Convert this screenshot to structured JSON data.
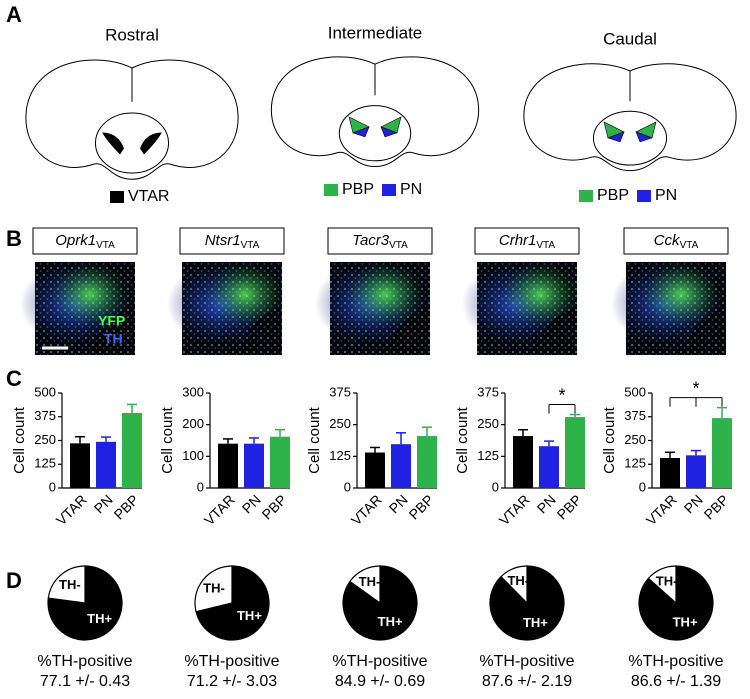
{
  "panel_labels": [
    "A",
    "B",
    "C",
    "D"
  ],
  "brain_sections": [
    {
      "title": "Rostral",
      "legend": [
        {
          "label": "VTAR",
          "color": "#000000"
        }
      ]
    },
    {
      "title": "Intermediate",
      "legend": [
        {
          "label": "PBP",
          "color": "#2db34a"
        },
        {
          "label": "PN",
          "color": "#1f22e0"
        }
      ]
    },
    {
      "title": "Caudal",
      "legend": [
        {
          "label": "PBP",
          "color": "#2db34a"
        },
        {
          "label": "PN",
          "color": "#1f22e0"
        }
      ]
    }
  ],
  "images": [
    {
      "gene": "Oprk1",
      "subscript": "VTA"
    },
    {
      "gene": "Ntsr1",
      "subscript": "VTA"
    },
    {
      "gene": "Tacr3",
      "subscript": "VTA"
    },
    {
      "gene": "Crhr1",
      "subscript": "VTA"
    },
    {
      "gene": "Cck",
      "subscript": "VTA"
    }
  ],
  "image_legend": {
    "yfp": "YFP",
    "th": "TH"
  },
  "chart_data": [
    {
      "type": "bar",
      "ylabel": "Cell count",
      "categories": [
        "VTAR",
        "PN",
        "PBP"
      ],
      "values": [
        235,
        243,
        395
      ],
      "errors": [
        35,
        25,
        45
      ],
      "colors": [
        "#000000",
        "#1f22e0",
        "#2db34a"
      ],
      "ylim": [
        0,
        500
      ],
      "yticks": [
        0,
        125,
        250,
        375,
        500
      ],
      "significance": []
    },
    {
      "type": "bar",
      "ylabel": "Cell count",
      "categories": [
        "VTAR",
        "PN",
        "PBP"
      ],
      "values": [
        140,
        140,
        162
      ],
      "errors": [
        15,
        18,
        22
      ],
      "colors": [
        "#000000",
        "#1f22e0",
        "#2db34a"
      ],
      "ylim": [
        0,
        300
      ],
      "yticks": [
        0,
        100,
        200,
        300
      ],
      "significance": []
    },
    {
      "type": "bar",
      "ylabel": "Cell count",
      "categories": [
        "VTAR",
        "PN",
        "PBP"
      ],
      "values": [
        140,
        173,
        205
      ],
      "errors": [
        20,
        45,
        35
      ],
      "colors": [
        "#000000",
        "#1f22e0",
        "#2db34a"
      ],
      "ylim": [
        0,
        375
      ],
      "yticks": [
        0,
        125,
        250,
        375
      ],
      "significance": []
    },
    {
      "type": "bar",
      "ylabel": "Cell count",
      "categories": [
        "VTAR",
        "PN",
        "PBP"
      ],
      "values": [
        205,
        165,
        280
      ],
      "errors": [
        25,
        20,
        10
      ],
      "colors": [
        "#000000",
        "#1f22e0",
        "#2db34a"
      ],
      "ylim": [
        0,
        375
      ],
      "yticks": [
        0,
        125,
        250,
        375
      ],
      "significance": [
        {
          "label": "*",
          "groups": [
            "PN",
            "PBP"
          ]
        }
      ]
    },
    {
      "type": "bar",
      "ylabel": "Cell count",
      "categories": [
        "VTAR",
        "PN",
        "PBP"
      ],
      "values": [
        158,
        172,
        368
      ],
      "errors": [
        30,
        25,
        55
      ],
      "colors": [
        "#000000",
        "#1f22e0",
        "#2db34a"
      ],
      "ylim": [
        0,
        500
      ],
      "yticks": [
        0,
        125,
        250,
        375,
        500
      ],
      "significance": [
        {
          "label": "*",
          "groups": [
            "VTAR",
            "PN",
            "PBP"
          ]
        }
      ]
    },
    {
      "type": "pie",
      "categories": [
        "TH+",
        "TH-"
      ],
      "values": [
        77.1,
        22.9
      ],
      "colors": [
        "#000000",
        "#ffffff"
      ],
      "xlabel": "%TH-positive",
      "summary": "77.1 +/- 0.43"
    },
    {
      "type": "pie",
      "categories": [
        "TH+",
        "TH-"
      ],
      "values": [
        71.2,
        28.8
      ],
      "colors": [
        "#000000",
        "#ffffff"
      ],
      "xlabel": "%TH-positive",
      "summary": "71.2 +/- 3.03"
    },
    {
      "type": "pie",
      "categories": [
        "TH+",
        "TH-"
      ],
      "values": [
        84.9,
        15.1
      ],
      "colors": [
        "#000000",
        "#ffffff"
      ],
      "xlabel": "%TH-positive",
      "summary": "84.9 +/- 0.69"
    },
    {
      "type": "pie",
      "categories": [
        "TH+",
        "TH-"
      ],
      "values": [
        87.6,
        12.4
      ],
      "colors": [
        "#000000",
        "#ffffff"
      ],
      "xlabel": "%TH-positive",
      "summary": "87.6 +/- 2.19"
    },
    {
      "type": "pie",
      "categories": [
        "TH+",
        "TH-"
      ],
      "values": [
        86.6,
        13.4
      ],
      "colors": [
        "#000000",
        "#ffffff"
      ],
      "xlabel": "%TH-positive",
      "summary": "86.6 +/- 1.39"
    }
  ]
}
